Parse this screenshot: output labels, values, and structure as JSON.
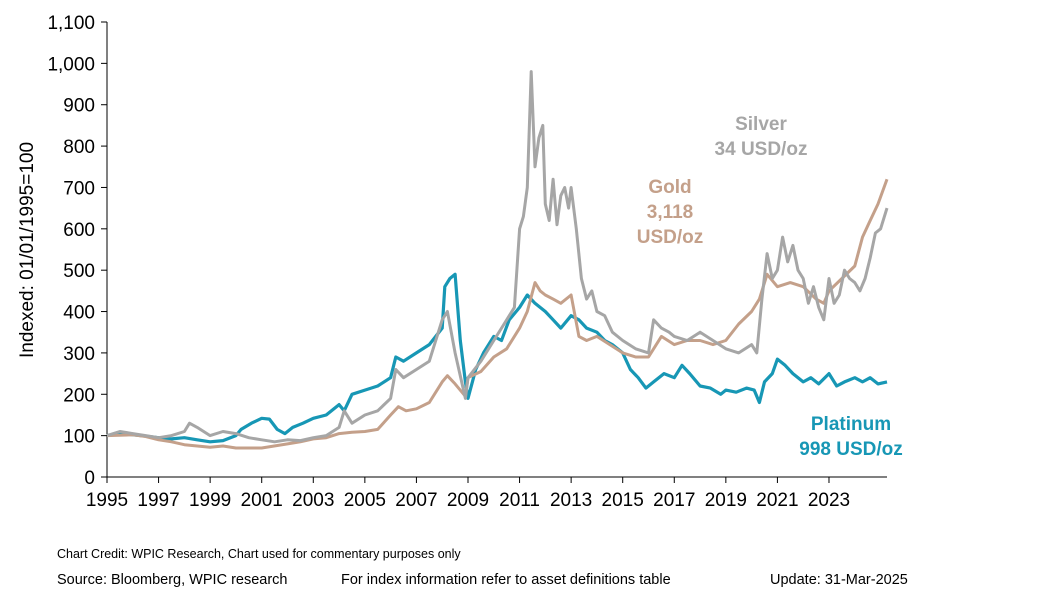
{
  "chart_data": {
    "type": "line",
    "ylabel": "Indexed:  01/01/1995=100",
    "ylim": [
      0,
      1100
    ],
    "yticks": [
      0,
      100,
      200,
      300,
      400,
      500,
      600,
      700,
      800,
      900,
      1000,
      1100
    ],
    "ytick_labels": [
      "0",
      "100",
      "200",
      "300",
      "400",
      "500",
      "600",
      "700",
      "800",
      "900",
      "1,000",
      "1,100"
    ],
    "xlim": [
      1995,
      2025.25
    ],
    "xticks": [
      1995,
      1997,
      1999,
      2001,
      2003,
      2005,
      2007,
      2009,
      2011,
      2013,
      2015,
      2017,
      2019,
      2021,
      2023
    ],
    "grid": false,
    "series": [
      {
        "name": "Platinum",
        "color": "#1797B5",
        "x": [
          1995,
          1995.5,
          1996,
          1996.5,
          1997,
          1997.5,
          1998,
          1998.5,
          1999,
          1999.5,
          2000,
          2000.2,
          2000.6,
          2001,
          2001.3,
          2001.6,
          2001.9,
          2002.2,
          2002.6,
          2003,
          2003.5,
          2004,
          2004.2,
          2004.5,
          2005,
          2005.5,
          2006,
          2006.2,
          2006.5,
          2007,
          2007.5,
          2008,
          2008.1,
          2008.3,
          2008.5,
          2008.7,
          2008.9,
          2009,
          2009.3,
          2009.6,
          2010,
          2010.3,
          2010.6,
          2011,
          2011.3,
          2011.6,
          2012,
          2012.3,
          2012.6,
          2013,
          2013.3,
          2013.6,
          2014,
          2014.3,
          2014.6,
          2015,
          2015.3,
          2015.6,
          2015.9,
          2016.2,
          2016.6,
          2017,
          2017.3,
          2017.6,
          2018,
          2018.4,
          2018.8,
          2019,
          2019.4,
          2019.8,
          2020.1,
          2020.3,
          2020.5,
          2020.8,
          2021,
          2021.3,
          2021.6,
          2022,
          2022.3,
          2022.6,
          2023,
          2023.3,
          2023.6,
          2024,
          2024.3,
          2024.6,
          2024.9,
          2025.25
        ],
        "y": [
          100,
          105,
          102,
          99,
          95,
          92,
          95,
          90,
          85,
          88,
          100,
          115,
          130,
          142,
          140,
          115,
          105,
          120,
          130,
          142,
          150,
          175,
          160,
          200,
          210,
          220,
          240,
          290,
          280,
          300,
          320,
          360,
          460,
          480,
          490,
          330,
          230,
          190,
          260,
          300,
          340,
          330,
          380,
          410,
          440,
          420,
          400,
          380,
          360,
          390,
          380,
          360,
          350,
          330,
          320,
          300,
          260,
          240,
          215,
          230,
          250,
          240,
          270,
          250,
          220,
          215,
          200,
          210,
          205,
          215,
          210,
          180,
          230,
          250,
          285,
          270,
          250,
          230,
          240,
          225,
          250,
          220,
          230,
          240,
          230,
          240,
          225,
          230
        ]
      },
      {
        "name": "Gold",
        "color": "#C4A08A",
        "x": [
          1995,
          1996,
          1996.5,
          1997,
          1997.5,
          1998,
          1999,
          1999.5,
          2000,
          2001,
          2002,
          2002.5,
          2003,
          2003.5,
          2004,
          2004.5,
          2005,
          2005.5,
          2006,
          2006.3,
          2006.6,
          2007,
          2007.5,
          2008,
          2008.2,
          2008.5,
          2008.9,
          2009,
          2009.5,
          2010,
          2010.5,
          2011,
          2011.3,
          2011.6,
          2011.8,
          2012,
          2012.3,
          2012.6,
          2013,
          2013.3,
          2013.6,
          2014,
          2014.5,
          2015,
          2015.5,
          2016,
          2016.5,
          2017,
          2017.5,
          2018,
          2018.5,
          2019,
          2019.5,
          2020,
          2020.3,
          2020.6,
          2021,
          2021.5,
          2022,
          2022.5,
          2022.8,
          2023,
          2023.5,
          2024,
          2024.3,
          2024.6,
          2024.9,
          2025.25
        ],
        "y": [
          100,
          102,
          98,
          90,
          85,
          78,
          72,
          75,
          70,
          70,
          80,
          85,
          92,
          95,
          105,
          108,
          110,
          115,
          150,
          170,
          160,
          165,
          180,
          230,
          245,
          225,
          195,
          240,
          255,
          290,
          310,
          360,
          400,
          470,
          450,
          440,
          430,
          420,
          440,
          340,
          330,
          340,
          320,
          300,
          290,
          290,
          340,
          320,
          330,
          330,
          320,
          330,
          370,
          400,
          430,
          490,
          460,
          470,
          460,
          430,
          420,
          450,
          480,
          510,
          580,
          620,
          660,
          720
        ]
      },
      {
        "name": "Silver",
        "color": "#A6A6A6",
        "x": [
          1995,
          1995.5,
          1996,
          1996.5,
          1997,
          1997.5,
          1998,
          1998.2,
          1998.5,
          1999,
          1999.5,
          2000,
          2000.5,
          2001,
          2001.5,
          2002,
          2002.5,
          2003,
          2003.5,
          2004,
          2004.2,
          2004.5,
          2005,
          2005.5,
          2006,
          2006.2,
          2006.5,
          2007,
          2007.5,
          2008,
          2008.2,
          2008.5,
          2008.9,
          2009,
          2009.5,
          2010,
          2010.4,
          2010.8,
          2011,
          2011.15,
          2011.3,
          2011.45,
          2011.6,
          2011.75,
          2011.9,
          2012,
          2012.15,
          2012.3,
          2012.45,
          2012.6,
          2012.75,
          2012.9,
          2013,
          2013.2,
          2013.4,
          2013.6,
          2013.8,
          2014,
          2014.3,
          2014.6,
          2015,
          2015.5,
          2016,
          2016.2,
          2016.5,
          2016.8,
          2017,
          2017.5,
          2018,
          2018.5,
          2019,
          2019.5,
          2020,
          2020.2,
          2020.4,
          2020.6,
          2020.8,
          2021,
          2021.2,
          2021.4,
          2021.6,
          2021.8,
          2022,
          2022.2,
          2022.4,
          2022.6,
          2022.8,
          2023,
          2023.2,
          2023.4,
          2023.6,
          2023.8,
          2024,
          2024.2,
          2024.4,
          2024.6,
          2024.8,
          2025,
          2025.25
        ],
        "y": [
          100,
          110,
          105,
          100,
          95,
          100,
          110,
          130,
          120,
          100,
          110,
          105,
          95,
          90,
          85,
          90,
          88,
          95,
          100,
          120,
          160,
          130,
          150,
          160,
          190,
          260,
          240,
          260,
          280,
          380,
          400,
          300,
          190,
          240,
          280,
          330,
          370,
          410,
          600,
          630,
          700,
          980,
          750,
          820,
          850,
          660,
          620,
          720,
          610,
          680,
          700,
          650,
          700,
          600,
          480,
          430,
          450,
          400,
          390,
          350,
          330,
          310,
          300,
          380,
          360,
          350,
          340,
          330,
          350,
          330,
          310,
          300,
          320,
          300,
          430,
          540,
          480,
          500,
          580,
          520,
          560,
          500,
          480,
          420,
          460,
          410,
          380,
          480,
          420,
          440,
          500,
          480,
          470,
          450,
          480,
          530,
          590,
          600,
          650
        ]
      }
    ],
    "annotations": [
      {
        "series": "Silver",
        "lines": [
          "Silver",
          "34 USD/oz"
        ],
        "color": "#A6A6A6"
      },
      {
        "series": "Gold",
        "lines": [
          "Gold",
          "3,118",
          "USD/oz"
        ],
        "color": "#C4A08A"
      },
      {
        "series": "Platinum",
        "lines": [
          "Platinum",
          "998 USD/oz"
        ],
        "color": "#1797B5"
      }
    ]
  },
  "footer": {
    "credit": "Chart Credit: WPIC Research, Chart used for commentary purposes only",
    "source": "Source: Bloomberg, WPIC research",
    "note": "For index information refer to asset definitions table",
    "update": "Update: 31-Mar-2025"
  }
}
